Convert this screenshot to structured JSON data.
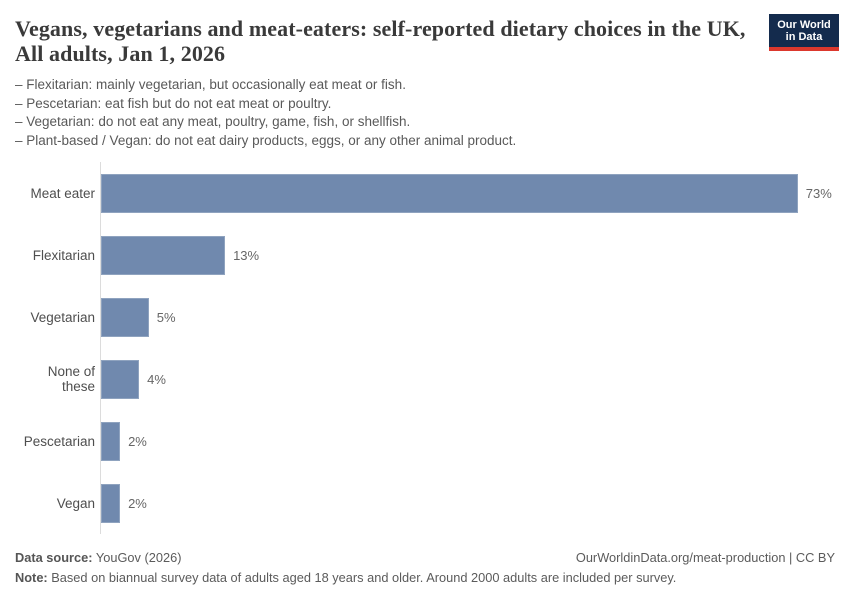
{
  "header": {
    "title": "Vegans, vegetarians and meat-eaters: self-reported dietary choices in the UK, All adults, Jan 1, 2026",
    "logo": {
      "line1": "Our World",
      "line2": "in Data"
    },
    "subtitle_lines": [
      "– Flexitarian: mainly vegetarian, but occasionally eat meat or fish.",
      "– Pescetarian: eat fish but do not eat meat or poultry.",
      "– Vegetarian: do not eat any meat, poultry, game, fish, or shellfish.",
      "– Plant-based / Vegan: do not eat dairy products, eggs, or any other animal product."
    ]
  },
  "chart_data": {
    "type": "bar",
    "orientation": "horizontal",
    "title": "Vegans, vegetarians and meat-eaters: self-reported dietary choices in the UK, All adults, Jan 1, 2026",
    "categories": [
      "Meat eater",
      "Flexitarian",
      "Vegetarian",
      "None of these",
      "Pescetarian",
      "Vegan"
    ],
    "values": [
      73,
      13,
      5,
      4,
      2,
      2
    ],
    "value_labels": [
      "73%",
      "13%",
      "5%",
      "4%",
      "2%",
      "2%"
    ],
    "xlabel": "",
    "ylabel": "",
    "xlim": [
      0,
      76.9
    ],
    "grid": false,
    "legend": false,
    "bar_color": "#7089ae",
    "axis_line_color": "#dcdcdc"
  },
  "colors": {
    "logo_navy": "#142b4d",
    "logo_red": "#dc382d",
    "title_text": "#3a3a3a",
    "body_text": "#595959"
  },
  "footer": {
    "datasource_label": "Data source:",
    "datasource_value": " YouGov (2026)",
    "license": "OurWorldinData.org/meat-production | CC BY",
    "note_label": "Note:",
    "note_value": " Based on biannual survey data of adults aged 18 years and older. Around 2000 adults are included per survey."
  }
}
